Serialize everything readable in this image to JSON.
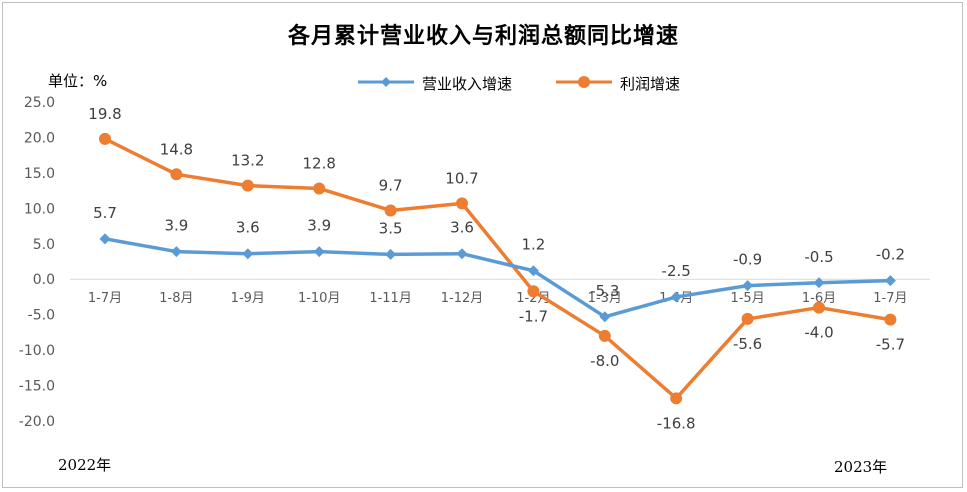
{
  "chart_data": {
    "type": "line",
    "title": "各月累计营业收入与利润总额同比增速",
    "unit_label": "单位：%",
    "categories": [
      "1-7月",
      "1-8月",
      "1-9月",
      "1-10月",
      "1-11月",
      "1-12月",
      "1-2月",
      "1-3月",
      "1-4月",
      "1-5月",
      "1-6月",
      "1-7月"
    ],
    "series": [
      {
        "name": "营业收入增速",
        "color": "#5b9bd5",
        "marker": "diamond",
        "values": [
          5.7,
          3.9,
          3.6,
          3.9,
          3.5,
          3.6,
          1.2,
          -5.3,
          -2.5,
          -0.9,
          -0.5,
          -0.2
        ],
        "labels": [
          "5.7",
          "3.9",
          "3.6",
          "3.9",
          "3.5",
          "3.6",
          "1.2",
          "-5.3",
          "-2.5",
          "-0.9",
          "-0.5",
          "-0.2"
        ]
      },
      {
        "name": "利润增速",
        "color": "#ed7d31",
        "marker": "circle",
        "values": [
          19.8,
          14.8,
          13.2,
          12.8,
          9.7,
          10.7,
          -1.7,
          -8.0,
          -16.8,
          -5.6,
          -4.0,
          -5.7
        ],
        "labels": [
          "19.8",
          "14.8",
          "13.2",
          "12.8",
          "9.7",
          "10.7",
          "-1.7",
          "-8.0",
          "-16.8",
          "-5.6",
          "-4.0",
          "-5.7"
        ]
      }
    ],
    "yticks": [
      "25.0",
      "20.0",
      "15.0",
      "10.0",
      "5.0",
      "0.0",
      "-5.0",
      "-10.0",
      "-15.0",
      "-20.0"
    ],
    "ylim": [
      -20,
      25
    ],
    "grid": false,
    "legend_position": "top",
    "year_labels": [
      "2022年",
      "2023年"
    ]
  }
}
